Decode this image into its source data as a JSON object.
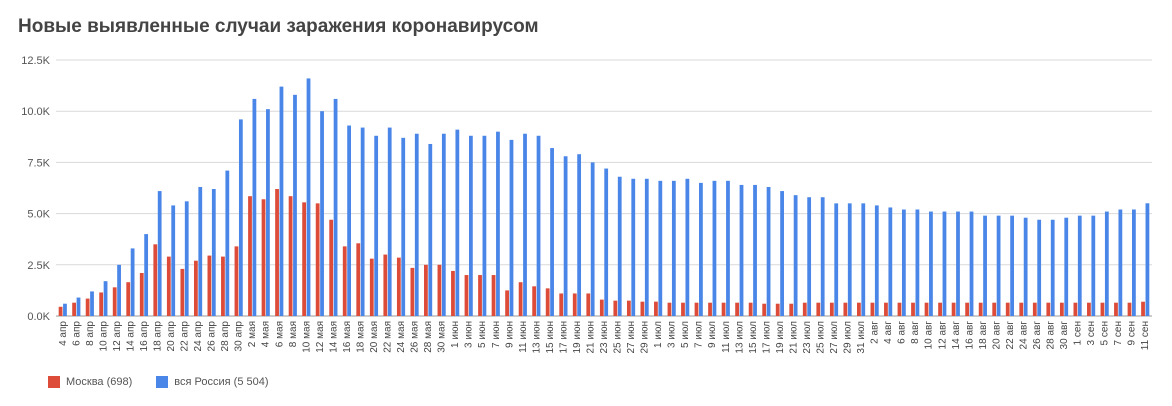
{
  "colors": {
    "moscow": "#dd4b39",
    "russia": "#4a86e8",
    "grid": "#d9d9d9",
    "text": "#555555"
  },
  "chart_data": {
    "type": "bar",
    "title": "Новые выявленные случаи заражения коронавирусом",
    "yticks": [
      "0.0K",
      "2.5K",
      "5.0K",
      "7.5K",
      "10.0K",
      "12.5K"
    ],
    "ylim": [
      0,
      12500
    ],
    "legend_position": "bottom-left",
    "x": [
      "4 апр",
      "6 апр",
      "8 апр",
      "10 апр",
      "12 апр",
      "14 апр",
      "16 апр",
      "18 апр",
      "20 апр",
      "22 апр",
      "24 апр",
      "26 апр",
      "28 апр",
      "30 апр",
      "2 мая",
      "4 мая",
      "6 мая",
      "8 мая",
      "10 мая",
      "12 мая",
      "14 мая",
      "16 мая",
      "18 мая",
      "20 мая",
      "22 мая",
      "24 мая",
      "26 мая",
      "28 мая",
      "30 мая",
      "1 июн",
      "3 июн",
      "5 июн",
      "7 июн",
      "9 июн",
      "11 июн",
      "13 июн",
      "15 июн",
      "17 июн",
      "19 июн",
      "21 июн",
      "23 июн",
      "25 июн",
      "27 июн",
      "29 июн",
      "1 июл",
      "3 июл",
      "5 июл",
      "7 июл",
      "9 июл",
      "11 июл",
      "13 июл",
      "15 июл",
      "17 июл",
      "19 июл",
      "21 июл",
      "23 июл",
      "25 июл",
      "27 июл",
      "29 июл",
      "31 июл",
      "2 авг",
      "4 авг",
      "6 авг",
      "8 авг",
      "10 авг",
      "12 авг",
      "14 авг",
      "16 авг",
      "18 авг",
      "20 авг",
      "22 авг",
      "24 авг",
      "26 авг",
      "28 авг",
      "30 авг",
      "1 сен",
      "3 сен",
      "5 сен",
      "7 сен",
      "9 сен",
      "11 сен"
    ],
    "series": [
      {
        "name": "Москва (698)",
        "values": [
          450,
          650,
          850,
          1150,
          1400,
          1650,
          2100,
          3500,
          2900,
          2300,
          2700,
          2950,
          2900,
          3400,
          5850,
          5700,
          6200,
          5850,
          5550,
          5500,
          4700,
          3400,
          3550,
          2800,
          3000,
          2850,
          2350,
          2500,
          2500,
          2200,
          2000,
          2000,
          2000,
          1250,
          1650,
          1450,
          1350,
          1100,
          1100,
          1100,
          800,
          750,
          750,
          700,
          700,
          650,
          650,
          650,
          650,
          650,
          650,
          650,
          600,
          600,
          600,
          650,
          650,
          650,
          650,
          650,
          650,
          650,
          650,
          650,
          650,
          650,
          650,
          650,
          650,
          650,
          650,
          650,
          650,
          650,
          650,
          650,
          650,
          650,
          650,
          650,
          698
        ]
      },
      {
        "name": "вся Россия (5 504)",
        "values": [
          600,
          900,
          1200,
          1700,
          2500,
          3300,
          4000,
          6100,
          5400,
          5600,
          6300,
          6200,
          7100,
          9600,
          10600,
          10100,
          11200,
          10800,
          11600,
          10000,
          10600,
          9300,
          9200,
          8800,
          9200,
          8700,
          8900,
          8400,
          8900,
          9100,
          8800,
          8800,
          9000,
          8600,
          8900,
          8800,
          8200,
          7800,
          7900,
          7500,
          7200,
          6800,
          6700,
          6700,
          6600,
          6600,
          6700,
          6500,
          6600,
          6600,
          6400,
          6400,
          6300,
          6100,
          5900,
          5800,
          5800,
          5500,
          5500,
          5500,
          5400,
          5300,
          5200,
          5200,
          5100,
          5100,
          5100,
          5100,
          4900,
          4900,
          4900,
          4800,
          4700,
          4700,
          4800,
          4900,
          4900,
          5100,
          5200,
          5200,
          5504
        ]
      }
    ]
  },
  "legend": {
    "moscow": "Москва (698)",
    "russia": "вся Россия (5 504)"
  }
}
